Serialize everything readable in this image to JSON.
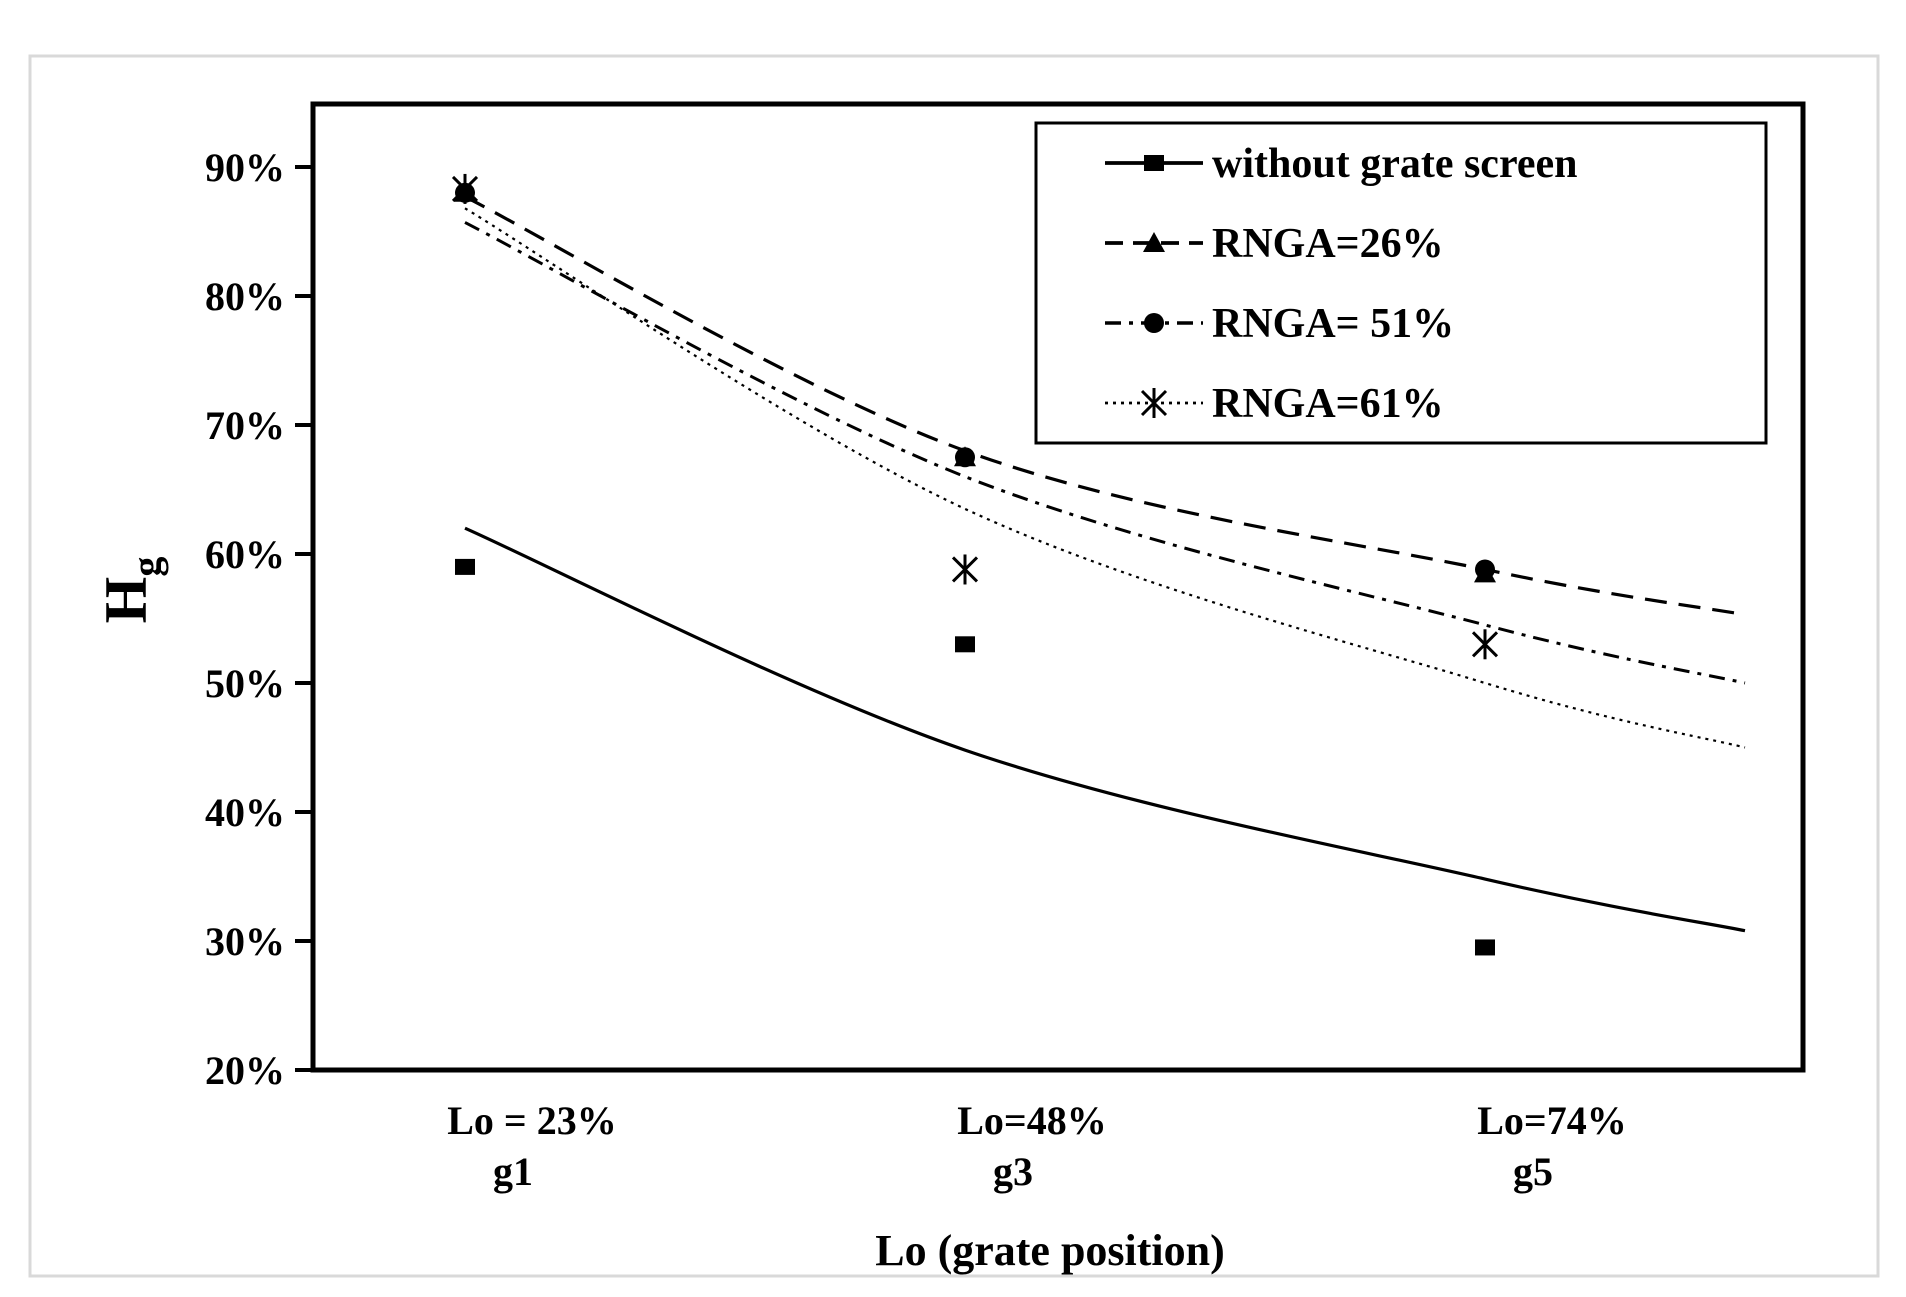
{
  "chart_data": {
    "type": "scatter",
    "title": "",
    "xlabel": "Lo (grate position)",
    "ylabel": "H",
    "ylabel_subscript": "g",
    "ylim": [
      0.2,
      0.95
    ],
    "xlim": [
      0.1,
      1.2
    ],
    "y_ticks": [
      {
        "value": 0.2,
        "label": "20%"
      },
      {
        "value": 0.3,
        "label": "30%"
      },
      {
        "value": 0.4,
        "label": "40%"
      },
      {
        "value": 0.5,
        "label": "50%"
      },
      {
        "value": 0.6,
        "label": "60%"
      },
      {
        "value": 0.7,
        "label": "70%"
      },
      {
        "value": 0.8,
        "label": "80%"
      },
      {
        "value": 0.9,
        "label": "90%"
      }
    ],
    "categories": [
      {
        "x": 0.23,
        "line1": "Lo = 23%",
        "line2": "g1"
      },
      {
        "x": 0.48,
        "line1": "Lo=48%",
        "line2": "g3"
      },
      {
        "x": 0.74,
        "line1": "Lo=74%",
        "line2": "g5"
      }
    ],
    "series": [
      {
        "name": "without grate screen",
        "marker": "square",
        "line_style": "solid",
        "points": [
          {
            "x": 0.23,
            "y": 0.59
          },
          {
            "x": 0.48,
            "y": 0.53
          },
          {
            "x": 0.74,
            "y": 0.295
          }
        ],
        "trend": [
          {
            "x": 0.23,
            "y": 0.62
          },
          {
            "x": 0.48,
            "y": 0.448
          },
          {
            "x": 0.74,
            "y": 0.348
          },
          {
            "x": 0.87,
            "y": 0.308
          }
        ]
      },
      {
        "name": "RNGA=26%",
        "marker": "triangle",
        "line_style": "dashed",
        "points": [
          {
            "x": 0.23,
            "y": 0.88
          },
          {
            "x": 0.48,
            "y": 0.675
          },
          {
            "x": 0.74,
            "y": 0.585
          }
        ],
        "trend": [
          {
            "x": 0.23,
            "y": 0.877
          },
          {
            "x": 0.48,
            "y": 0.68
          },
          {
            "x": 0.74,
            "y": 0.588
          },
          {
            "x": 0.87,
            "y": 0.553
          }
        ]
      },
      {
        "name": "RNGA= 51%",
        "marker": "circle",
        "line_style": "dashdot",
        "points": [
          {
            "x": 0.23,
            "y": 0.88
          },
          {
            "x": 0.48,
            "y": 0.675
          },
          {
            "x": 0.74,
            "y": 0.588
          }
        ],
        "trend": [
          {
            "x": 0.23,
            "y": 0.857
          },
          {
            "x": 0.48,
            "y": 0.66
          },
          {
            "x": 0.74,
            "y": 0.545
          },
          {
            "x": 0.87,
            "y": 0.5
          }
        ]
      },
      {
        "name": "RNGA=61%",
        "marker": "asterisk",
        "line_style": "dotted",
        "points": [
          {
            "x": 0.23,
            "y": 0.883
          },
          {
            "x": 0.48,
            "y": 0.588
          },
          {
            "x": 0.74,
            "y": 0.53
          }
        ],
        "trend": [
          {
            "x": 0.23,
            "y": 0.868
          },
          {
            "x": 0.48,
            "y": 0.635
          },
          {
            "x": 0.74,
            "y": 0.5
          },
          {
            "x": 0.87,
            "y": 0.45
          }
        ]
      }
    ],
    "legend": {
      "position": "top-right"
    },
    "grid": false
  }
}
